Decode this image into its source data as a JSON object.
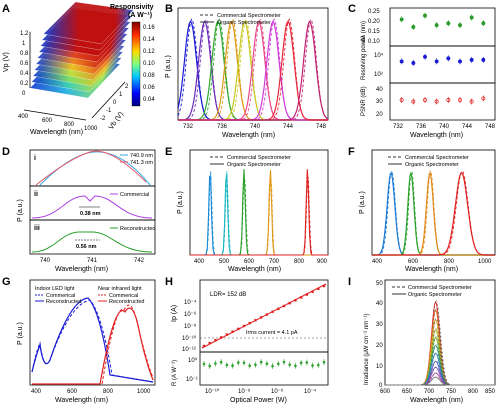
{
  "panels": {
    "A": {
      "label": "A",
      "colorbar_title": "Responsivity",
      "colorbar_unit": "(A W⁻¹)",
      "colorbar_ticks": [
        "0.16",
        "0.14",
        "0.12",
        "0.10",
        "0.08",
        "0.06",
        "0.04"
      ],
      "axis_vp": "Vp (V)",
      "axis_vb": "Vb (V)",
      "axis_wl": "Wavelength (nm)",
      "vp_ticks": [
        "1.2",
        "1",
        "0.8",
        "0.6",
        "0.4",
        "0.2",
        "0"
      ],
      "vb_ticks": [
        "-2",
        "-1",
        "0",
        "1",
        "2"
      ],
      "wl_ticks": [
        "400",
        "600",
        "800",
        "1000"
      ]
    },
    "B": {
      "label": "B",
      "legend": [
        "Commercial Spectrometer",
        "Organic Spectrometer"
      ],
      "ylabel": "P (a.u.)",
      "xlabel": "Wavelength (nm)",
      "xticks": [
        "732",
        "736",
        "740",
        "744",
        "748"
      ]
    },
    "C": {
      "label": "C",
      "ylabels": [
        "Δλ (nm)",
        "Resolving power",
        "PSNR (dB)"
      ],
      "xlabel": "Wavelength (nm)",
      "xticks": [
        "732",
        "736",
        "740",
        "744",
        "748"
      ],
      "c1_ticks": [
        "0.25",
        "0.20",
        "0.15",
        "0.10"
      ],
      "c2_ticks": [
        "10⁴",
        "10³"
      ],
      "c3_ticks": [
        "40",
        "30",
        "20"
      ]
    },
    "D": {
      "label": "D",
      "sub": [
        "i",
        "ii",
        "iii"
      ],
      "legend_i": [
        "740.9 nm",
        "741.3 nm"
      ],
      "legend_ii": "Commercial",
      "legend_iii": "Reconstructed",
      "ann_ii": "0.38 nm",
      "ann_iii": "0.56 nm",
      "ylabel": "P (a.u.)",
      "xlabel": "Wavelength (nm)",
      "xticks": [
        "740",
        "741",
        "742"
      ]
    },
    "E": {
      "label": "E",
      "legend": [
        "Commercial Spectrometer",
        "Organic Spectrometer"
      ],
      "ylabel": "P (a.u.)",
      "xlabel": "Wavelength (nm)",
      "xticks": [
        "400",
        "500",
        "600",
        "700",
        "800",
        "900"
      ]
    },
    "F": {
      "label": "F",
      "legend": [
        "Commercial Spectrometer",
        "Organic Spectrometer"
      ],
      "ylabel": "P (a.u.)",
      "xlabel": "Wavelength (nm)",
      "xticks": [
        "400",
        "600",
        "800",
        "1000"
      ]
    },
    "G": {
      "label": "G",
      "legend_left_title": "Indoor LED light",
      "legend_right_title": "Near infrared light",
      "legend_items": [
        "Commerical",
        "Reconstructed"
      ],
      "ylabel": "P (a.u.)",
      "xlabel": "Wavelength (nm)",
      "xticks": [
        "400",
        "600",
        "800",
        "1000"
      ]
    },
    "H": {
      "label": "H",
      "ldr": "LDR= 152 dB",
      "irms": "Irms current = 4.1 pA",
      "ylabel_top": "Ip (A)",
      "ylabel_bottom": "R (A W⁻¹)",
      "xlabel": "Optical Power (W)",
      "top_ticks": [
        "10⁻⁴",
        "10⁻⁶",
        "10⁻⁸",
        "10⁻¹⁰",
        "10⁻¹²"
      ],
      "bottom_ticks": [
        "10⁰",
        "10⁻¹"
      ],
      "xticks": [
        "10⁻¹⁰",
        "10⁻⁸",
        "10⁻⁶",
        "10⁻⁴"
      ]
    },
    "I": {
      "label": "I",
      "legend": [
        "Commercial Spectrometer",
        "Organic Spectrometer"
      ],
      "ylabel": "Irradiance (μW cm⁻² nm⁻¹)",
      "xlabel": "Wavelength (nm)",
      "yticks": [
        "50",
        "40",
        "30",
        "20",
        "10",
        "0"
      ],
      "xticks": [
        "600",
        "650",
        "700",
        "750",
        "800",
        "850"
      ]
    }
  },
  "chart_data": [
    {
      "panel": "B",
      "type": "line",
      "series_type": "gaussian",
      "centers": [
        732.5,
        734.2,
        735.8,
        737.4,
        739.0,
        740.7,
        742.4,
        744.2,
        746.8
      ],
      "fwhm": 1.7,
      "colors": [
        "#1a1ad6",
        "#6a2ab8",
        "#2fa82f",
        "#e09a1a",
        "#c8c81e",
        "#e84a8a",
        "#d03ad8",
        "#e8283a",
        "#c02070"
      ],
      "xlim": [
        731,
        749
      ]
    },
    {
      "panel": "C",
      "type": "scatter",
      "x": [
        732,
        734,
        736,
        738,
        740,
        742,
        744,
        746
      ],
      "delta_lambda": [
        0.21,
        0.17,
        0.23,
        0.18,
        0.19,
        0.18,
        0.22,
        0.19
      ],
      "resolving_power_log": [
        3.6,
        3.55,
        3.75,
        3.6,
        3.7,
        3.6,
        3.65,
        3.65
      ],
      "psnr": [
        31,
        30,
        31,
        30,
        31,
        31,
        30,
        32
      ],
      "colors": [
        "#2a9a2a",
        "#1a1ad6",
        "#e02020"
      ]
    },
    {
      "panel": "E",
      "type": "line",
      "series_type": "gaussian",
      "centers": [
        460,
        525,
        595,
        700,
        848
      ],
      "fwhm": 12,
      "colors": [
        "#1a8ad6",
        "#1ab8c0",
        "#2aa02a",
        "#e09a1a",
        "#e02020"
      ],
      "xlim": [
        380,
        930
      ]
    },
    {
      "panel": "F",
      "type": "line",
      "series_type": "gaussian",
      "centers": [
        505,
        615,
        720,
        895
      ],
      "fwhm": [
        50,
        40,
        45,
        80
      ],
      "colors": [
        "#1a7ad6",
        "#2aa02a",
        "#e08a1a",
        "#e02020"
      ],
      "xlim": [
        400,
        1080
      ]
    },
    {
      "panel": "I",
      "type": "line",
      "series_type": "gaussian",
      "center": 715,
      "fwhm": 22,
      "peaks": [
        42,
        38,
        33,
        28,
        24,
        20,
        16,
        12,
        9,
        6,
        4
      ],
      "xlim": [
        600,
        850
      ],
      "ylim": [
        0,
        50
      ]
    }
  ]
}
